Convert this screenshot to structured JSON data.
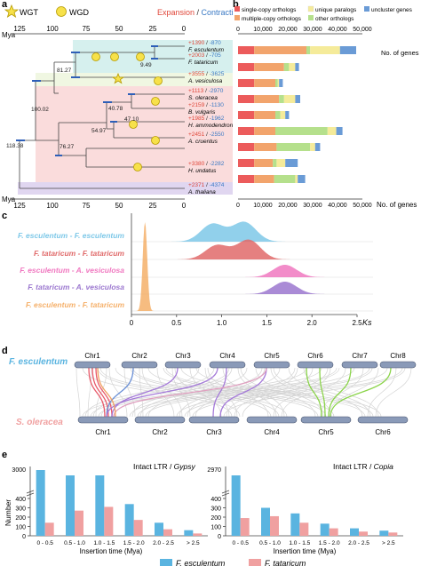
{
  "panel_a": {
    "label": "a",
    "legend": {
      "wgt": "WGT",
      "wgd": "WGD",
      "expansion": "Expansion",
      "slash": " / ",
      "contraction": "Contraction"
    },
    "axis_unit": "Mya",
    "axis_ticks": [
      "125",
      "100",
      "75",
      "50",
      "25",
      "0"
    ],
    "nodes": [
      "9.49",
      "81.27",
      "100.02",
      "118.38",
      "40.78",
      "47.10",
      "54.97",
      "76.27"
    ],
    "taxa": [
      {
        "name": "F. esculentum",
        "gain": "+1390",
        "loss": "-870"
      },
      {
        "name": "F. tataricum",
        "gain": "+2003",
        "loss": "-705"
      },
      {
        "name": "A. vesiculosa",
        "gain": "+3555",
        "loss": "-3625"
      },
      {
        "name": "S. oleracea",
        "gain": "+1113",
        "loss": "-2970"
      },
      {
        "name": "B. vulgaris",
        "gain": "+2159",
        "loss": "-1130"
      },
      {
        "name": "H. ammodendron",
        "gain": "+1985",
        "loss": "-1962"
      },
      {
        "name": "A. cruentus",
        "gain": "+2451",
        "loss": "-2550"
      },
      {
        "name": "H. undatus",
        "gain": "+3380",
        "loss": "-2282"
      },
      {
        "name": "A. thaliana",
        "gain": "+2371",
        "loss": "-4374"
      }
    ]
  },
  "panel_b": {
    "label": "b",
    "legend": [
      "single-copy orthologs",
      "unique paralogs",
      "uncluster genes",
      "multiple-copy orthologs",
      "other orthologs"
    ],
    "axis_title": "No. of genes",
    "ticks": [
      "0",
      "10,000",
      "20,000",
      "30,000",
      "40,000",
      "50,000"
    ],
    "colors": {
      "single": "#ec5b5b",
      "multiple": "#f2a46c",
      "other": "#b5e08c",
      "unique": "#f5eb9a",
      "uncluster": "#6a9bd6"
    },
    "chart_data": {
      "type": "bar",
      "stacked": true,
      "orientation": "horizontal",
      "xlim": [
        0,
        50000
      ],
      "categories": [
        "F. esculentum",
        "F. tataricum",
        "A. vesiculosa",
        "S. oleracea",
        "B. vulgaris",
        "H. ammodendron",
        "A. cruentus",
        "H. undatus",
        "A. thaliana"
      ],
      "series": [
        {
          "name": "single-copy orthologs",
          "values": [
            6500,
            6500,
            6500,
            6500,
            6500,
            6500,
            6500,
            6500,
            6500
          ]
        },
        {
          "name": "multiple-copy orthologs",
          "values": [
            21000,
            12000,
            8500,
            10000,
            8500,
            8500,
            9000,
            7500,
            8000
          ]
        },
        {
          "name": "other orthologs",
          "values": [
            1500,
            2000,
            1000,
            2000,
            2000,
            21000,
            13500,
            1500,
            8500
          ]
        },
        {
          "name": "unique paralogs",
          "values": [
            12000,
            2500,
            500,
            4500,
            2000,
            3500,
            2000,
            3500,
            1000
          ]
        },
        {
          "name": "uncluster genes",
          "values": [
            6500,
            1500,
            1500,
            2000,
            1500,
            2500,
            2000,
            5000,
            3000
          ]
        }
      ]
    }
  },
  "panel_c": {
    "label": "c",
    "axis_label": "Ks",
    "ticks": [
      "0",
      "0.5",
      "1.0",
      "1.5",
      "2.0",
      "2.5"
    ],
    "chart_data": {
      "type": "area",
      "xlim": [
        0,
        2.5
      ],
      "series": [
        {
          "name": "F. esculentum - F. esculentum",
          "color": "#7ec8e8",
          "peaks": [
            0.9,
            1.25
          ]
        },
        {
          "name": "F. tataricum - F. tataricum",
          "color": "#e06a6a",
          "peaks": [
            0.95,
            1.3
          ]
        },
        {
          "name": "F. esculentum - A. vesiculosa",
          "color": "#f078c0",
          "peaks": [
            1.7
          ]
        },
        {
          "name": "F. tataricum - A. vesiculosa",
          "color": "#9b77cf",
          "peaks": [
            1.7
          ]
        },
        {
          "name": "F. esculentum - F. tataricum",
          "color": "#f5b06a",
          "peaks": [
            0.15
          ]
        }
      ]
    }
  },
  "panel_d": {
    "label": "d",
    "top_species": "F. esculentum",
    "bottom_species": "S. oleracea",
    "top_chr": [
      "Chr1",
      "Chr2",
      "Chr3",
      "Chr4",
      "Chr5",
      "Chr6",
      "Chr7",
      "Chr8"
    ],
    "bottom_chr": [
      "Chr1",
      "Chr2",
      "Chr3",
      "Chr4",
      "Chr5",
      "Chr6"
    ]
  },
  "panel_e": {
    "label": "e",
    "y_axis": "Number",
    "x_axis": "Insertion time (Mya)",
    "legend": [
      "F. esculentum",
      "F. tataricum"
    ],
    "colors": {
      "fe": "#5ab4e0",
      "ft": "#f0a0a0"
    },
    "left": {
      "title_plain": "Intact LTR / ",
      "title_italic": "Gypsy",
      "yticks": [
        "0",
        "100",
        "200",
        "300",
        "400",
        "3000"
      ],
      "chart_data": {
        "type": "bar",
        "categories": [
          "0 - 0.5",
          "0.5 - 1.0",
          "1.0 - 1.5",
          "1.5 - 2.0",
          "2.0 - 2.5",
          "> 2.5"
        ],
        "series": [
          {
            "name": "F. esculentum",
            "values": [
              3900,
              3300,
              410,
              340,
              140,
              60
            ]
          },
          {
            "name": "F. tataricum",
            "values": [
              140,
              270,
              310,
              170,
              70,
              25
            ]
          }
        ],
        "ylim": [
          0,
          3000
        ],
        "axis_break": true
      }
    },
    "right": {
      "title_plain": "Intact LTR / ",
      "title_italic": "Copia",
      "yticks": [
        "0",
        "100",
        "200",
        "300",
        "400",
        "2970"
      ],
      "chart_data": {
        "type": "bar",
        "categories": [
          "0 - 0.5",
          "0.5 - 1.0",
          "1.0 - 1.5",
          "1.5 - 2.0",
          "2.0 - 2.5",
          "> 2.5"
        ],
        "series": [
          {
            "name": "F. esculentum",
            "values": [
              3000,
              300,
              240,
              130,
              80,
              55
            ]
          },
          {
            "name": "F. tataricum",
            "values": [
              190,
              210,
              140,
              80,
              45,
              35
            ]
          }
        ],
        "ylim": [
          0,
          2970
        ],
        "axis_break": true
      }
    }
  }
}
